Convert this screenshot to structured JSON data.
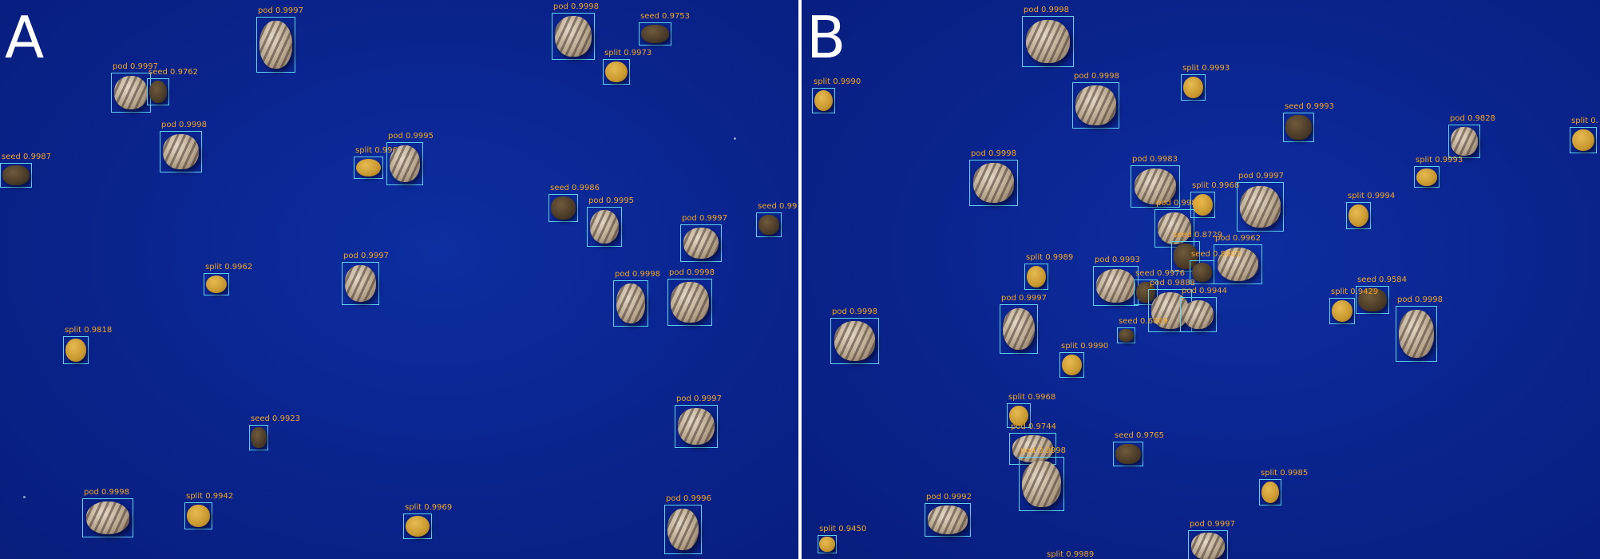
{
  "panels": [
    {
      "letter": "A",
      "detections": [
        {
          "cls": "pod",
          "label": "pod   0.9997",
          "box": [
            321,
            21,
            49,
            70
          ]
        },
        {
          "cls": "pod",
          "label": "pod   0.9998",
          "box": [
            691,
            16,
            54,
            59
          ]
        },
        {
          "cls": "seed",
          "label": "seed   0.9753",
          "box": [
            800,
            28,
            41,
            29
          ]
        },
        {
          "cls": "split",
          "label": "split   0.9973",
          "box": [
            755,
            74,
            34,
            32
          ]
        },
        {
          "cls": "pod",
          "label": "pod   0.9997",
          "box": [
            139,
            91,
            50,
            50
          ]
        },
        {
          "cls": "seed",
          "label": "seed   0.9762",
          "box": [
            184,
            98,
            28,
            34
          ]
        },
        {
          "cls": "pod",
          "label": "pod   0.9998",
          "box": [
            200,
            164,
            53,
            52
          ]
        },
        {
          "cls": "seed",
          "label": "seed   0.9987",
          "box": [
            0,
            204,
            40,
            31
          ]
        },
        {
          "cls": "split",
          "label": "split   0.9964",
          "box": [
            443,
            196,
            37,
            28
          ]
        },
        {
          "cls": "pod",
          "label": "pod   0.9995",
          "box": [
            484,
            178,
            46,
            54
          ]
        },
        {
          "cls": "seed",
          "label": "seed   0.9986",
          "box": [
            687,
            243,
            37,
            35
          ]
        },
        {
          "cls": "pod",
          "label": "pod   0.9995",
          "box": [
            735,
            259,
            44,
            50
          ]
        },
        {
          "cls": "pod",
          "label": "pod   0.9997",
          "box": [
            852,
            281,
            52,
            47
          ]
        },
        {
          "cls": "seed",
          "label": "seed   0.99",
          "box": [
            947,
            266,
            32,
            31
          ]
        },
        {
          "cls": "split",
          "label": "split   0.9962",
          "box": [
            255,
            342,
            32,
            28
          ]
        },
        {
          "cls": "pod",
          "label": "pod   0.9997",
          "box": [
            428,
            328,
            47,
            54
          ]
        },
        {
          "cls": "pod",
          "label": "pod   0.9998",
          "box": [
            768,
            351,
            44,
            58
          ]
        },
        {
          "cls": "pod",
          "label": "pod   0.9998",
          "box": [
            836,
            349,
            56,
            59
          ]
        },
        {
          "cls": "split",
          "label": "split   0.9818",
          "box": [
            79,
            421,
            32,
            35
          ]
        },
        {
          "cls": "pod",
          "label": "pod   0.9997",
          "box": [
            845,
            507,
            54,
            54
          ]
        },
        {
          "cls": "seed",
          "label": "seed   0.9923",
          "box": [
            312,
            532,
            24,
            32
          ]
        },
        {
          "cls": "pod",
          "label": "pod   0.9998",
          "box": [
            103,
            624,
            64,
            49
          ]
        },
        {
          "cls": "split",
          "label": "split   0.9942",
          "box": [
            231,
            629,
            35,
            34
          ]
        },
        {
          "cls": "split",
          "label": "split   0.9969",
          "box": [
            505,
            643,
            36,
            32
          ]
        },
        {
          "cls": "pod",
          "label": "pod   0.9996",
          "box": [
            832,
            632,
            47,
            62
          ]
        }
      ]
    },
    {
      "letter": "B",
      "detections": [
        {
          "cls": "pod",
          "label": "pod   0.9998",
          "box": [
            276,
            20,
            65,
            64
          ]
        },
        {
          "cls": "split",
          "label": "split   0.9990",
          "box": [
            13,
            110,
            29,
            32
          ]
        },
        {
          "cls": "pod",
          "label": "pod   0.9998",
          "box": [
            339,
            103,
            59,
            58
          ]
        },
        {
          "cls": "split",
          "label": "split   0.9993",
          "box": [
            475,
            93,
            31,
            33
          ]
        },
        {
          "cls": "seed",
          "label": "seed   0.9993",
          "box": [
            603,
            141,
            39,
            37
          ]
        },
        {
          "cls": "pod",
          "label": "pod   0.9828",
          "box": [
            810,
            156,
            40,
            42
          ]
        },
        {
          "cls": "split",
          "label": "split   0.9993",
          "box": [
            767,
            208,
            32,
            27
          ]
        },
        {
          "cls": "pod",
          "label": "pod   0.9998",
          "box": [
            210,
            200,
            61,
            58
          ]
        },
        {
          "cls": "pod",
          "label": "pod   0.9983",
          "box": [
            412,
            207,
            62,
            53
          ]
        },
        {
          "cls": "split",
          "label": "split   0.9968",
          "box": [
            487,
            240,
            31,
            33
          ]
        },
        {
          "cls": "pod",
          "label": "pod   0.9997",
          "box": [
            545,
            228,
            59,
            62
          ]
        },
        {
          "cls": "split",
          "label": "split   0.9994",
          "box": [
            682,
            253,
            31,
            34
          ]
        },
        {
          "cls": "pod",
          "label": "pod   0.9988",
          "box": [
            442,
            262,
            50,
            48
          ]
        },
        {
          "cls": "seed",
          "label": "seed   0.8729",
          "box": [
            463,
            302,
            36,
            38
          ]
        },
        {
          "cls": "pod",
          "label": "pod   0.9962",
          "box": [
            516,
            306,
            61,
            50
          ]
        },
        {
          "cls": "seed",
          "label": "seed   0.8903",
          "box": [
            486,
            326,
            31,
            30
          ]
        },
        {
          "cls": "split",
          "label": "split   0.9989",
          "box": [
            279,
            330,
            30,
            33
          ]
        },
        {
          "cls": "pod",
          "label": "pod   0.9993",
          "box": [
            365,
            333,
            57,
            50
          ]
        },
        {
          "cls": "seed",
          "label": "seed   0.9976",
          "box": [
            416,
            350,
            30,
            32
          ]
        },
        {
          "cls": "seed",
          "label": "seed   0.9584",
          "box": [
            694,
            358,
            42,
            35
          ]
        },
        {
          "cls": "split",
          "label": "split   0.9429",
          "box": [
            661,
            373,
            32,
            33
          ]
        },
        {
          "cls": "pod",
          "label": "pod   0.9998",
          "box": [
            744,
            383,
            52,
            70
          ]
        },
        {
          "cls": "pod",
          "label": "pod   0.9888",
          "box": [
            434,
            362,
            55,
            54
          ]
        },
        {
          "cls": "pod",
          "label": "pod   0.9944",
          "box": [
            474,
            372,
            46,
            44
          ]
        },
        {
          "cls": "pod",
          "label": "pod   0.9997",
          "box": [
            248,
            381,
            48,
            62
          ]
        },
        {
          "cls": "seed",
          "label": "seed   0.6069",
          "box": [
            395,
            410,
            23,
            20
          ]
        },
        {
          "cls": "pod",
          "label": "pod   0.9998",
          "box": [
            36,
            398,
            61,
            58
          ]
        },
        {
          "cls": "split",
          "label": "split   0.9990",
          "box": [
            323,
            441,
            31,
            32
          ]
        },
        {
          "cls": "split",
          "label": "split   0.9968",
          "box": [
            257,
            505,
            30,
            31
          ]
        },
        {
          "cls": "pod",
          "label": "pod   0.9744",
          "box": [
            260,
            542,
            59,
            40
          ]
        },
        {
          "cls": "seed",
          "label": "seed   0.9765",
          "box": [
            390,
            553,
            38,
            31
          ]
        },
        {
          "cls": "pod",
          "label": "pod   0.9998",
          "box": [
            272,
            572,
            57,
            68
          ]
        },
        {
          "cls": "split",
          "label": "split   0.9985",
          "box": [
            573,
            600,
            28,
            33
          ]
        },
        {
          "cls": "pod",
          "label": "pod   0.9992",
          "box": [
            154,
            630,
            58,
            42
          ]
        },
        {
          "cls": "split",
          "label": "split   0.9450",
          "box": [
            20,
            670,
            24,
            23
          ]
        },
        {
          "cls": "pod",
          "label": "pod   0.9997",
          "box": [
            484,
            664,
            50,
            40
          ]
        },
        {
          "cls": "split",
          "label": "split   0.9989",
          "box": [
            305,
            702,
            28,
            10
          ]
        },
        {
          "cls": "split",
          "label": "split   0.",
          "box": [
            962,
            159,
            34,
            33
          ]
        }
      ]
    }
  ],
  "colors": {
    "background": "#0a2590",
    "box": "#5fd3f0",
    "label": "#f5a623",
    "panel_letter": "#ffffff",
    "divider": "#ffffff"
  }
}
